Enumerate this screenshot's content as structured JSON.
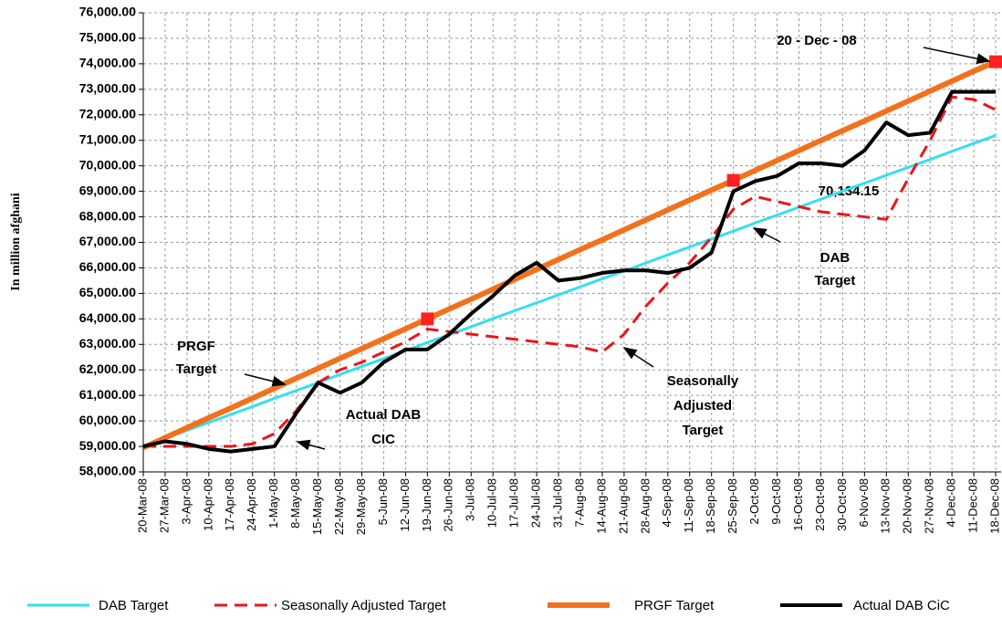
{
  "chart_data": {
    "type": "line",
    "y_label": "In million afghani",
    "categories": [
      "20-Mar-08",
      "27-Mar-08",
      "3-Apr-08",
      "10-Apr-08",
      "17-Apr-08",
      "24-Apr-08",
      "1-May-08",
      "8-May-08",
      "15-May-08",
      "22-May-08",
      "29-May-08",
      "5-Jun-08",
      "12-Jun-08",
      "19-Jun-08",
      "26-Jun-08",
      "3-Jul-08",
      "10-Jul-08",
      "17-Jul-08",
      "24-Jul-08",
      "31-Jul-08",
      "7-Aug-08",
      "14-Aug-08",
      "21-Aug-08",
      "28-Aug-08",
      "4-Sep-08",
      "11-Sep-08",
      "18-Sep-08",
      "25-Sep-08",
      "2-Oct-08",
      "9-Oct-08",
      "16-Oct-08",
      "23-Oct-08",
      "30-Oct-08",
      "6-Nov-08",
      "13-Nov-08",
      "20-Nov-08",
      "27-Nov-08",
      "4-Dec-08",
      "11-Dec-08",
      "18-Dec-08"
    ],
    "series": [
      {
        "name": "DAB Target",
        "color": "#33e0ee",
        "values": [
          59000,
          59310,
          59630,
          59940,
          60250,
          60560,
          60880,
          61190,
          61500,
          61820,
          62130,
          62440,
          62750,
          63070,
          63380,
          63690,
          64010,
          64320,
          64630,
          64940,
          65260,
          65570,
          65880,
          66190,
          66510,
          66820,
          67130,
          67440,
          67760,
          68070,
          68380,
          68690,
          69010,
          69320,
          69630,
          69940,
          70250,
          70570,
          70880,
          71190
        ]
      },
      {
        "name": "Seasonally Adjusted Target",
        "color": "#e8161c",
        "dashed": true,
        "values": [
          59000,
          59000,
          59000,
          59000,
          59000,
          59100,
          59500,
          60400,
          61500,
          62000,
          62300,
          62700,
          63100,
          63600,
          63500,
          63400,
          63300,
          63200,
          63100,
          63000,
          62900,
          62700,
          63400,
          64500,
          65400,
          66200,
          67200,
          68300,
          68800,
          68600,
          68400,
          68200,
          68100,
          68000,
          67900,
          69500,
          71000,
          72700,
          72600,
          72200
        ]
      },
      {
        "name": "PRGF Target",
        "color": "#f2711c",
        "values": [
          58950,
          59340,
          59730,
          60120,
          60500,
          60890,
          61280,
          61670,
          62060,
          62450,
          62830,
          63220,
          63610,
          64000,
          64390,
          64770,
          65160,
          65550,
          65940,
          66330,
          66720,
          67100,
          67490,
          67880,
          68270,
          68660,
          69050,
          69430,
          69820,
          70210,
          70600,
          70990,
          71380,
          71760,
          72150,
          72540,
          72930,
          73320,
          73710,
          74080
        ]
      },
      {
        "name": "Actual DAB CiC",
        "color": "#000000",
        "values": [
          59000,
          59200,
          59100,
          58900,
          58800,
          58900,
          59000,
          60300,
          61500,
          61100,
          61500,
          62300,
          62800,
          62800,
          63400,
          64200,
          64900,
          65700,
          66200,
          65500,
          65600,
          65800,
          65900,
          65900,
          65800,
          66000,
          66600,
          69000,
          69400,
          69600,
          70100,
          70100,
          70000,
          70600,
          71700,
          71200,
          71300,
          72900,
          72900,
          72900
        ]
      }
    ],
    "highlight_categories": [
      "19-Jun-08",
      "25-Sep-08",
      "18-Dec-08"
    ],
    "highlight_color": "#ff2020",
    "ylim": [
      58000,
      76000
    ],
    "yticks": [
      {
        "value": 58000,
        "label": "58,000.00"
      },
      {
        "value": 59000,
        "label": "59,000.00"
      },
      {
        "value": 60000,
        "label": "60,000.00"
      },
      {
        "value": 61000,
        "label": "61,000.00"
      },
      {
        "value": 62000,
        "label": "62,000.00"
      },
      {
        "value": 63000,
        "label": "63,000.00"
      },
      {
        "value": 64000,
        "label": "64,000.00"
      },
      {
        "value": 65000,
        "label": "65,000.00"
      },
      {
        "value": 66000,
        "label": "66,000.00"
      },
      {
        "value": 67000,
        "label": "67,000.00"
      },
      {
        "value": 68000,
        "label": "68,000.00"
      },
      {
        "value": 69000,
        "label": "69,000.00"
      },
      {
        "value": 70000,
        "label": "70,000.00"
      },
      {
        "value": 71000,
        "label": "71,000.00"
      },
      {
        "value": 72000,
        "label": "72,000.00"
      },
      {
        "value": 73000,
        "label": "73,000.00"
      },
      {
        "value": 74000,
        "label": "74,000.00"
      },
      {
        "value": 75000,
        "label": "75,000.00"
      },
      {
        "value": 76000,
        "label": "76,000.00"
      }
    ],
    "grid": true,
    "legend": "bottom",
    "annotations": [
      {
        "lines": [
          "20 - Dec - 08"
        ]
      },
      {
        "lines": [
          "70,134.15"
        ]
      },
      {
        "lines": [
          "DAB",
          "Target"
        ]
      },
      {
        "lines": [
          "Seasonally",
          "Adjusted",
          "Target"
        ]
      },
      {
        "lines": [
          "Actual DAB",
          "CIC"
        ]
      },
      {
        "lines": [
          "PRGF",
          "Target"
        ]
      }
    ]
  }
}
